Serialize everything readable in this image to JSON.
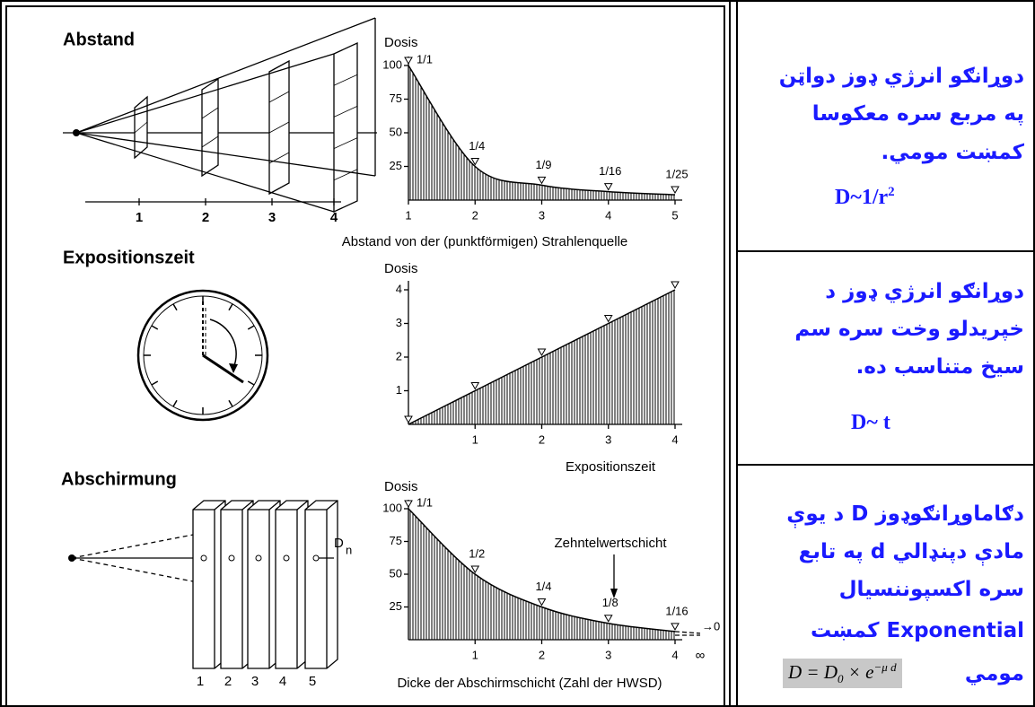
{
  "chart_data": [
    {
      "type": "area",
      "title": "Abstand",
      "y_label": "Dosis",
      "x_label": "Abstand von der (punktförmigen) Strahlenquelle",
      "diagram_labels": [
        "1",
        "2",
        "3",
        "4"
      ],
      "x": [
        1,
        2,
        3,
        4,
        5
      ],
      "values": [
        100,
        25,
        11.1,
        6.25,
        4
      ],
      "value_labels": [
        "1/1",
        "1/4",
        "1/9",
        "1/16",
        "1/25"
      ],
      "xlim": [
        1,
        5
      ],
      "ylim": [
        0,
        100
      ],
      "xticks": [
        1,
        2,
        3,
        4,
        5
      ],
      "yticks": [
        25,
        50,
        75,
        100
      ]
    },
    {
      "type": "area",
      "title": "Expositionszeit",
      "y_label": "Dosis",
      "x_label": "Expositionszeit",
      "x": [
        0,
        1,
        2,
        3,
        4
      ],
      "values": [
        0,
        1,
        2,
        3,
        4
      ],
      "xlim": [
        0,
        4
      ],
      "ylim": [
        0,
        4
      ],
      "xticks": [
        1,
        2,
        3,
        4
      ],
      "yticks": [
        1,
        2,
        3,
        4
      ]
    },
    {
      "type": "area",
      "title": "Abschirmung",
      "y_label": "Dosis",
      "x_label": "Dicke der Abschirmschicht (Zahl der HWSD)",
      "diagram_labels": [
        "1",
        "2",
        "3",
        "4",
        "5"
      ],
      "detector_label": {
        "base": "D",
        "sub": "n"
      },
      "annotation": "Zehntelwertschicht",
      "tail_label": "→0",
      "infinity_label": "∞",
      "x": [
        0,
        1,
        2,
        3,
        4
      ],
      "values": [
        100,
        50,
        25,
        12.5,
        6.25
      ],
      "value_labels": [
        "1/1",
        "1/2",
        "1/4",
        "1/8",
        "1/16"
      ],
      "xlim": [
        0,
        4
      ],
      "ylim": [
        0,
        100
      ],
      "xticks": [
        1,
        2,
        3,
        4
      ],
      "yticks": [
        25,
        50,
        75,
        100
      ]
    }
  ],
  "table": {
    "rows": [
      {
        "lines": [
          "دوړانګو انرژي ډوز دواټن",
          "په مربع سره معکوسا",
          "کمښت مومي."
        ],
        "formula": {
          "base": "D~1/r",
          "sup": "2"
        }
      },
      {
        "lines": [
          "دوړانګو انرژي ډوز د",
          "خپريدلو وخت سره سم",
          "سيخ متناسب ده."
        ],
        "formula": {
          "base": "D~ t"
        }
      },
      {
        "lines": [
          "دګاماوړانګوډوز D د يوې",
          "مادې دپنډالي d په تابع",
          "سره اکسپوننسيال",
          "Exponential  کمښت",
          "مومي"
        ],
        "formula": {
          "main": "D = D",
          "sub": "0",
          "mid": " × e",
          "sup": "−μ d"
        }
      }
    ]
  }
}
